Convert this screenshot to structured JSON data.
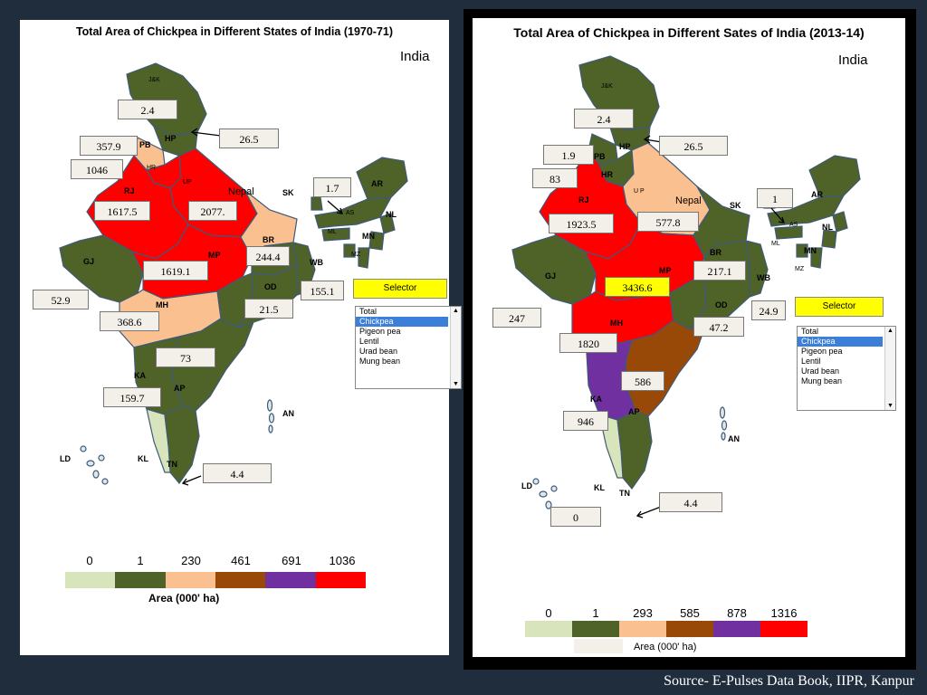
{
  "colors": {
    "c0": "#d8e4bc",
    "c1": "#4f6228",
    "c2": "#fac090",
    "c3": "#984807",
    "c4": "#7030a0",
    "c5": "#ff0000",
    "highlight": "#ffff00",
    "page_bg": "#1f2d3d"
  },
  "left": {
    "title": "Total Area of Chickpea in Different States of India (1970-71)",
    "country": "India",
    "states": {
      "jk": "J&K",
      "hp": "HP",
      "pb": "PB",
      "hr": "HR",
      "up": "UP",
      "rj": "RJ",
      "gj": "GJ",
      "mp": "MP",
      "mh": "MH",
      "ka": "KA",
      "ap": "AP",
      "kl": "KL",
      "tn": "TN",
      "od": "OD",
      "br": "BR",
      "wb": "WB",
      "sk": "SK",
      "ar": "AR",
      "as": "AS",
      "nl": "NL",
      "ml": "ML",
      "mn": "MN",
      "mz": "MZ",
      "nepal": "Nepal",
      "an": "AN",
      "ld": "LD"
    },
    "callouts": {
      "jk": "2.4",
      "hp": "26.5",
      "pb": "357.9",
      "hr": "1046",
      "rj": "1617.5",
      "up": "2077.",
      "mp": "1619.1",
      "gj": "52.9",
      "mh": "368.6",
      "ap": "73",
      "ka": "159.7",
      "tn": "4.4",
      "br": "244.4",
      "od": "21.5",
      "wb": "155.1",
      "ne": "1.7"
    },
    "selector": "Selector",
    "options": [
      "Total",
      "Chickpea",
      "Pigeon pea",
      "Lentil",
      "Urad bean",
      "Mung bean"
    ],
    "selected": "Chickpea",
    "legend_ticks": [
      "0",
      "1",
      "230",
      "461",
      "691",
      "1036"
    ],
    "legend_label": "Area (000' ha)"
  },
  "right": {
    "title": "Total Area of Chickpea in Different Sates of India (2013-14)",
    "country": "India",
    "states": {
      "jk": "J&K",
      "hp": "HP",
      "pb": "PB",
      "hr": "HR",
      "up": "U P",
      "rj": "RJ",
      "gj": "GJ",
      "mp": "MP",
      "mh": "MH",
      "ka": "KA",
      "ap": "AP",
      "kl": "KL",
      "tn": "TN",
      "od": "OD",
      "br": "BR",
      "wb": "WB",
      "sk": "SK",
      "ar": "AR",
      "as": "AS",
      "nl": "NL",
      "ml": "ML",
      "mn": "MN",
      "mz": "MZ",
      "nepal": "Nepal",
      "an": "AN",
      "ld": "LD"
    },
    "callouts": {
      "jk": "2.4",
      "hp": "26.5",
      "pb": "1.9",
      "hr": "83",
      "rj": "1923.5",
      "up": "577.8",
      "mp": "3436.6",
      "gj": "247",
      "mh": "1820",
      "ap": "586",
      "ka": "946",
      "tn": "4.4",
      "kl": "0",
      "br": "217.1",
      "od": "47.2",
      "wb": "24.9",
      "ne": "1"
    },
    "selector": "Selector",
    "options": [
      "Total",
      "Chickpea",
      "Pigeon pea",
      "Lentil",
      "Urad bean",
      "Mung bean"
    ],
    "selected": "Chickpea",
    "legend_ticks": [
      "0",
      "1",
      "293",
      "585",
      "878",
      "1316"
    ],
    "legend_label": "Area (000' ha)"
  },
  "source": "Source- E-Pulses Data Book, IIPR, Kanpur"
}
